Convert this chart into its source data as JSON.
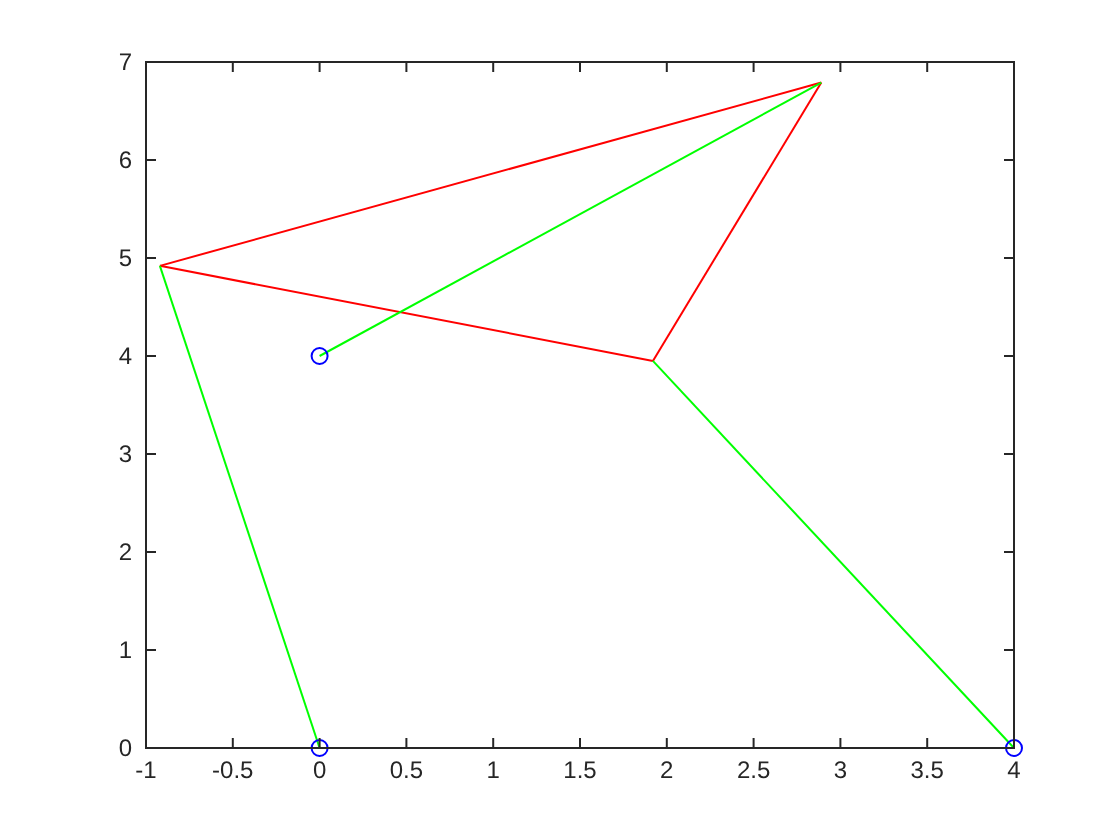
{
  "chart_data": {
    "type": "line",
    "xlim": [
      -1,
      4
    ],
    "ylim": [
      0,
      7
    ],
    "xticks": [
      -1,
      -0.5,
      0,
      0.5,
      1,
      1.5,
      2,
      2.5,
      3,
      3.5,
      4
    ],
    "yticks": [
      0,
      1,
      2,
      3,
      4,
      5,
      6,
      7
    ],
    "grid": false,
    "line_style": "solid",
    "series": [
      {
        "color": "#ff0000",
        "marker": "none",
        "x": [
          -0.92,
          2.89
        ],
        "values": [
          4.92,
          6.79
        ]
      },
      {
        "color": "#ff0000",
        "marker": "none",
        "x": [
          1.92,
          2.89
        ],
        "values": [
          3.95,
          6.79
        ]
      },
      {
        "color": "#ff0000",
        "marker": "none",
        "x": [
          -0.92,
          1.92
        ],
        "values": [
          4.92,
          3.95
        ]
      },
      {
        "color": "#00ff00",
        "marker": "none",
        "x": [
          0,
          2.89
        ],
        "values": [
          4,
          6.79
        ]
      },
      {
        "color": "#00ff00",
        "marker": "none",
        "x": [
          -0.92,
          0
        ],
        "values": [
          4.92,
          0
        ]
      },
      {
        "color": "#00ff00",
        "marker": "none",
        "x": [
          1.92,
          4
        ],
        "values": [
          3.95,
          0
        ]
      },
      {
        "type": "scatter",
        "color": "#0000ff",
        "marker": "circle",
        "x": [
          0,
          0,
          4
        ],
        "values": [
          0,
          4,
          0
        ]
      }
    ]
  }
}
